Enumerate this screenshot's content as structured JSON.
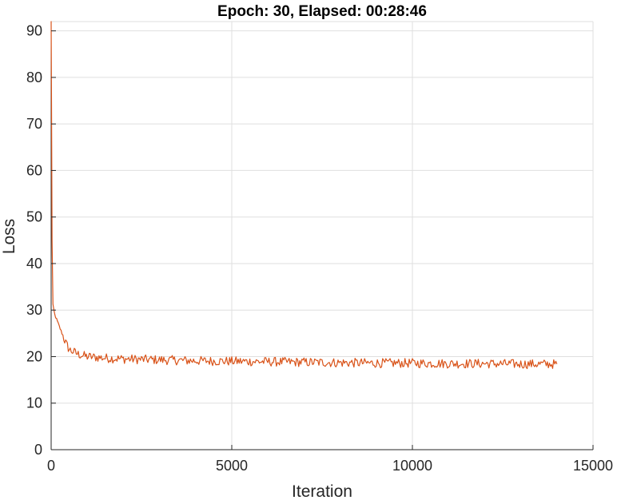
{
  "chart_data": {
    "type": "line",
    "title": "Epoch: 30, Elapsed: 00:28:46",
    "xlabel": "Iteration",
    "ylabel": "Loss",
    "xlim": [
      0,
      15000
    ],
    "ylim": [
      0,
      92
    ],
    "x_ticks": [
      0,
      5000,
      10000,
      15000
    ],
    "y_ticks": [
      0,
      10,
      20,
      30,
      40,
      50,
      60,
      70,
      80,
      90
    ],
    "grid": true,
    "series": [
      {
        "color": "#D95319",
        "x": [
          0,
          10,
          25,
          50,
          100,
          200,
          300,
          400,
          500,
          750,
          1000,
          1500,
          2000,
          3000,
          4000,
          5000,
          6000,
          7000,
          8000,
          9000,
          10000,
          11000,
          12000,
          13000,
          14000
        ],
        "values": [
          92,
          75,
          45,
          31,
          29,
          27,
          25,
          23,
          21.5,
          20.5,
          20,
          19.7,
          19.5,
          19.3,
          19.1,
          19.0,
          18.9,
          18.8,
          18.7,
          18.6,
          18.6,
          18.5,
          18.5,
          18.4,
          18.4
        ],
        "noise": 1.0
      }
    ]
  }
}
